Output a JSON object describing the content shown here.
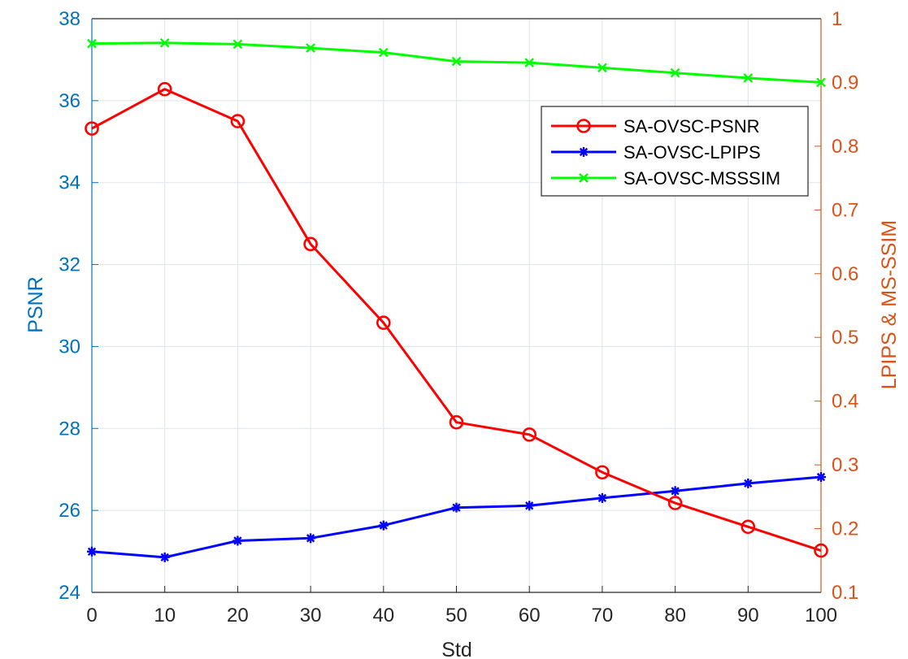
{
  "chart_data": {
    "type": "line",
    "xlabel": "Std",
    "ylabel_left": "PSNR",
    "ylabel_right": "LPIPS & MS-SSIM",
    "xlim": [
      0,
      100
    ],
    "ylim_left": [
      24,
      38
    ],
    "ylim_right": [
      0.1,
      1
    ],
    "x_ticks": [
      "0",
      "10",
      "20",
      "30",
      "40",
      "50",
      "60",
      "70",
      "80",
      "90",
      "100"
    ],
    "y_left_ticks": [
      "24",
      "26",
      "28",
      "30",
      "32",
      "34",
      "36",
      "38"
    ],
    "y_right_ticks": [
      "0.1",
      "0.2",
      "0.3",
      "0.4",
      "0.5",
      "0.6",
      "0.7",
      "0.8",
      "0.9",
      "1"
    ],
    "grid": true,
    "legend_position": "top-right",
    "x": [
      0,
      10,
      20,
      30,
      40,
      50,
      60,
      70,
      80,
      90,
      100
    ],
    "series": [
      {
        "name": "SA-OVSC-PSNR",
        "axis": "left",
        "color": "#ff0000",
        "marker": "circle",
        "values": [
          35.32,
          36.28,
          35.5,
          32.5,
          30.58,
          28.15,
          27.85,
          26.93,
          26.18,
          25.6,
          25.02
        ]
      },
      {
        "name": "SA-OVSC-LPIPS",
        "axis": "right",
        "color": "#0000ff",
        "marker": "asterisk",
        "values": [
          0.164,
          0.155,
          0.181,
          0.185,
          0.205,
          0.233,
          0.236,
          0.248,
          0.259,
          0.271,
          0.281
        ]
      },
      {
        "name": "SA-OVSC-MSSSIM",
        "axis": "right",
        "color": "#00ff00",
        "marker": "x",
        "values": [
          0.961,
          0.962,
          0.96,
          0.954,
          0.947,
          0.933,
          0.931,
          0.923,
          0.915,
          0.907,
          0.9
        ]
      }
    ]
  },
  "colors": {
    "left_axis": "#0072bd",
    "right_axis": "#d95319",
    "grid": "#dfe3e8",
    "axis_box": "#262626"
  }
}
